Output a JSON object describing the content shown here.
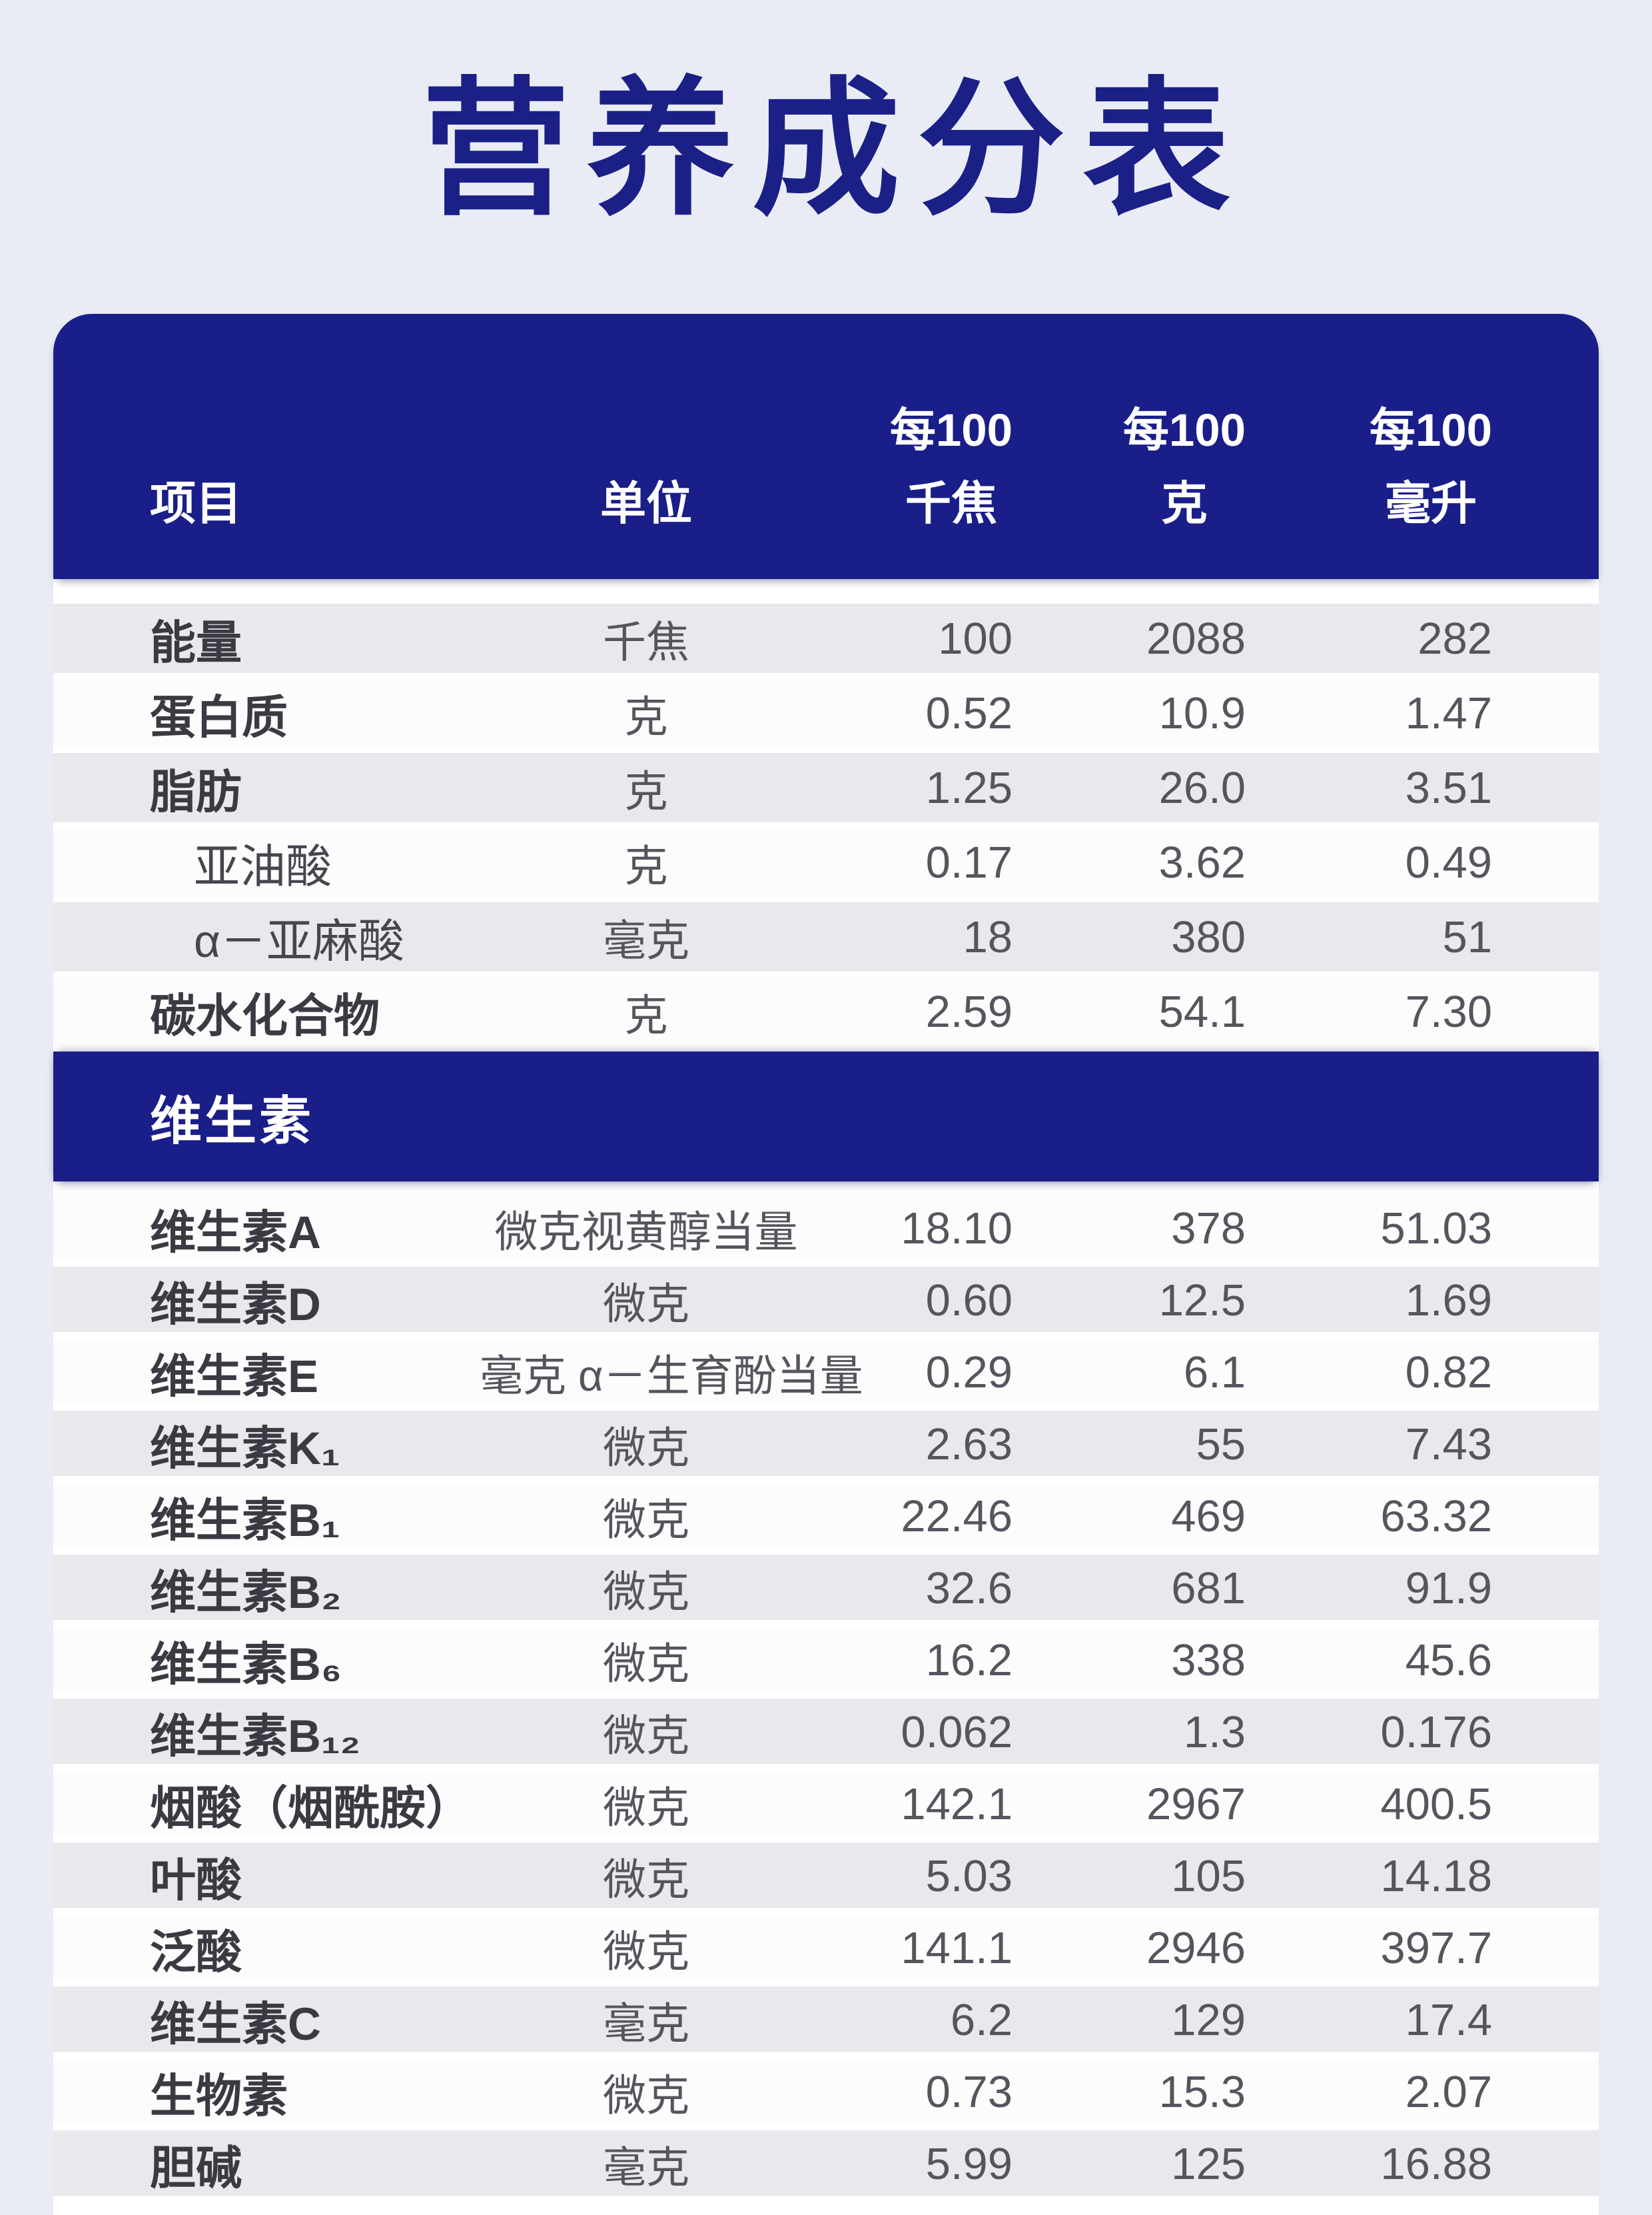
{
  "title": "营养成分表",
  "colors": {
    "navy": "#1a1e88",
    "title": "#1b2087",
    "page-bg": "#e9ecf4",
    "gray-row": "#e8e8ed",
    "white-row": "#fcfcfd",
    "label": "#3a3a42",
    "value": "#55555d",
    "header-text": "#ffffff"
  },
  "table": {
    "columns": {
      "item": "项目",
      "unit": "单位",
      "per100kj": "每100\n千焦",
      "per100g": "每100\n克",
      "per100ml": "每100\n毫升"
    },
    "sections": [
      {
        "header_label": null,
        "rows": [
          {
            "item": "能量",
            "unit": "千焦",
            "per100kj": "100",
            "per100g": "2088",
            "per100ml": "282",
            "indent": false
          },
          {
            "item": "蛋白质",
            "unit": "克",
            "per100kj": "0.52",
            "per100g": "10.9",
            "per100ml": "1.47",
            "indent": false
          },
          {
            "item": "脂肪",
            "unit": "克",
            "per100kj": "1.25",
            "per100g": "26.0",
            "per100ml": "3.51",
            "indent": false
          },
          {
            "item": "亚油酸",
            "unit": "克",
            "per100kj": "0.17",
            "per100g": "3.62",
            "per100ml": "0.49",
            "indent": true
          },
          {
            "item": "α－亚麻酸",
            "unit": "毫克",
            "per100kj": "18",
            "per100g": "380",
            "per100ml": "51",
            "indent": true
          },
          {
            "item": "碳水化合物",
            "unit": "克",
            "per100kj": "2.59",
            "per100g": "54.1",
            "per100ml": "7.30",
            "indent": false
          }
        ]
      },
      {
        "header_label": "维生素",
        "rows": [
          {
            "item": "维生素A",
            "unit": "微克视黄醇当量",
            "per100kj": "18.10",
            "per100g": "378",
            "per100ml": "51.03",
            "indent": false
          },
          {
            "item": "维生素D",
            "unit": "微克",
            "per100kj": "0.60",
            "per100g": "12.5",
            "per100ml": "1.69",
            "indent": false
          },
          {
            "item": "维生素E",
            "unit": "毫克 α－生育酚当量",
            "per100kj": "0.29",
            "per100g": "6.1",
            "per100ml": "0.82",
            "indent": false
          },
          {
            "item": "维生素K₁",
            "unit": "微克",
            "per100kj": "2.63",
            "per100g": "55",
            "per100ml": "7.43",
            "indent": false
          },
          {
            "item": "维生素B₁",
            "unit": "微克",
            "per100kj": "22.46",
            "per100g": "469",
            "per100ml": "63.32",
            "indent": false
          },
          {
            "item": "维生素B₂",
            "unit": "微克",
            "per100kj": "32.6",
            "per100g": "681",
            "per100ml": "91.9",
            "indent": false
          },
          {
            "item": "维生素B₆",
            "unit": "微克",
            "per100kj": "16.2",
            "per100g": "338",
            "per100ml": "45.6",
            "indent": false
          },
          {
            "item": "维生素B₁₂",
            "unit": "微克",
            "per100kj": "0.062",
            "per100g": "1.3",
            "per100ml": "0.176",
            "indent": false
          },
          {
            "item": "烟酸（烟酰胺）",
            "unit": "微克",
            "per100kj": "142.1",
            "per100g": "2967",
            "per100ml": "400.5",
            "indent": false
          },
          {
            "item": "叶酸",
            "unit": "微克",
            "per100kj": "5.03",
            "per100g": "105",
            "per100ml": "14.18",
            "indent": false
          },
          {
            "item": "泛酸",
            "unit": "微克",
            "per100kj": "141.1",
            "per100g": "2946",
            "per100ml": "397.7",
            "indent": false
          },
          {
            "item": "维生素C",
            "unit": "毫克",
            "per100kj": "6.2",
            "per100g": "129",
            "per100ml": "17.4",
            "indent": false
          },
          {
            "item": "生物素",
            "unit": "微克",
            "per100kj": "0.73",
            "per100g": "15.3",
            "per100ml": "2.07",
            "indent": false
          },
          {
            "item": "胆碱",
            "unit": "毫克",
            "per100kj": "5.99",
            "per100g": "125",
            "per100ml": "16.88",
            "indent": false
          }
        ]
      }
    ]
  }
}
